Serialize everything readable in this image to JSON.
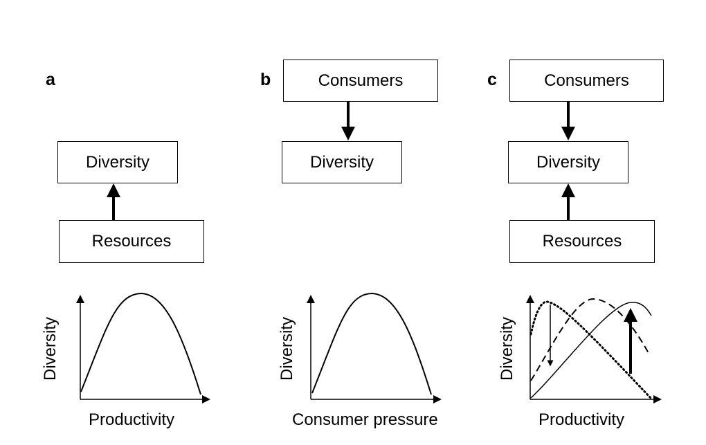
{
  "panels": {
    "a": {
      "label": "a",
      "boxes": {
        "diversity": "Diversity",
        "resources": "Resources"
      },
      "graph": {
        "xlabel": "Productivity",
        "ylabel": "Diversity"
      }
    },
    "b": {
      "label": "b",
      "boxes": {
        "consumers": "Consumers",
        "diversity": "Diversity"
      },
      "graph": {
        "xlabel": "Consumer pressure",
        "ylabel": "Diversity"
      }
    },
    "c": {
      "label": "c",
      "boxes": {
        "consumers": "Consumers",
        "diversity": "Diversity",
        "resources": "Resources"
      },
      "graph": {
        "xlabel": "Productivity",
        "ylabel": "Diversity"
      }
    }
  }
}
